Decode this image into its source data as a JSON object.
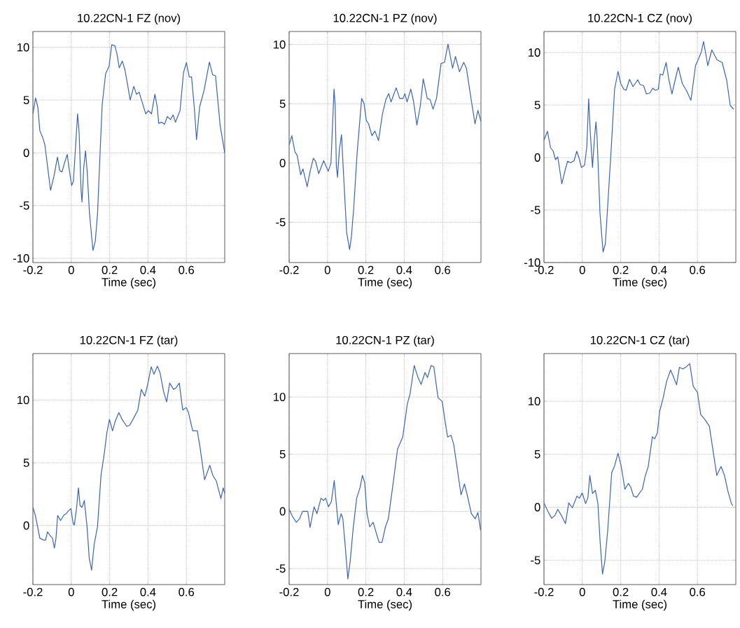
{
  "chart_data": [
    {
      "type": "line",
      "title": "10.22CN-1 FZ (nov)",
      "xlabel": "Time (sec)",
      "color": "#3c64b4",
      "grid": true,
      "xlim": [
        -0.2,
        0.8
      ],
      "ylim": [
        -10.4,
        11.5
      ],
      "xticks": [
        -0.2,
        0,
        0.2,
        0.4,
        0.6
      ],
      "yticks": [
        -10,
        -5,
        0,
        5,
        10
      ],
      "x": [
        -0.2,
        -0.186,
        -0.174,
        -0.164,
        -0.15,
        -0.138,
        -0.108,
        -0.09,
        -0.072,
        -0.06,
        -0.048,
        -0.036,
        -0.021,
        -0.012,
        0.002,
        0.011,
        0.023,
        0.033,
        0.041,
        0.051,
        0.056,
        0.065,
        0.074,
        0.083,
        0.095,
        0.113,
        0.125,
        0.137,
        0.149,
        0.161,
        0.179,
        0.197,
        0.211,
        0.227,
        0.238,
        0.25,
        0.266,
        0.28,
        0.295,
        0.307,
        0.326,
        0.34,
        0.354,
        0.366,
        0.388,
        0.402,
        0.418,
        0.436,
        0.448,
        0.456,
        0.471,
        0.486,
        0.501,
        0.517,
        0.531,
        0.543,
        0.567,
        0.585,
        0.6,
        0.615,
        0.627,
        0.641,
        0.653,
        0.669,
        0.692,
        0.72,
        0.737,
        0.752,
        0.776,
        0.8
      ],
      "values": [
        3.7,
        5.2,
        4.3,
        2.1,
        1.5,
        0.8,
        -3.55,
        -2.2,
        -0.4,
        -1.7,
        -1.8,
        -1.0,
        -0.15,
        -1.4,
        -3.1,
        -2.7,
        0.8,
        3.7,
        1.9,
        -3.55,
        -4.65,
        -1.4,
        0.2,
        -1.8,
        -5.75,
        -9.25,
        -8.4,
        -5.75,
        -0.5,
        4.55,
        7.5,
        8.2,
        10.25,
        10.15,
        9.4,
        8.05,
        8.7,
        7.85,
        6.3,
        5.0,
        6.3,
        5.55,
        5.75,
        5.0,
        3.7,
        4.0,
        3.7,
        5.55,
        4.35,
        2.8,
        2.9,
        2.7,
        3.45,
        3.15,
        3.6,
        2.9,
        4.0,
        7.6,
        8.55,
        7.2,
        7.2,
        4.35,
        1.25,
        4.35,
        5.9,
        8.6,
        7.4,
        7.3,
        2.6,
        0
      ]
    },
    {
      "type": "line",
      "title": "10.22CN-1 PZ (nov)",
      "xlabel": "Time (sec)",
      "color": "#3c64b4",
      "grid": true,
      "xlim": [
        -0.2,
        0.8
      ],
      "ylim": [
        -8.4,
        11.1
      ],
      "xticks": [
        -0.2,
        0,
        0.2,
        0.4,
        0.6
      ],
      "yticks": [
        -5,
        0,
        5,
        10
      ],
      "x": [
        -0.2,
        -0.186,
        -0.17,
        -0.158,
        -0.14,
        -0.128,
        -0.106,
        -0.092,
        -0.074,
        -0.062,
        -0.046,
        -0.02,
        -0.008,
        0.004,
        0.018,
        0.034,
        0.04,
        0.046,
        0.052,
        0.062,
        0.073,
        0.082,
        0.1,
        0.115,
        0.124,
        0.136,
        0.154,
        0.178,
        0.19,
        0.202,
        0.214,
        0.232,
        0.247,
        0.266,
        0.286,
        0.304,
        0.319,
        0.331,
        0.358,
        0.376,
        0.394,
        0.403,
        0.415,
        0.434,
        0.448,
        0.466,
        0.484,
        0.499,
        0.52,
        0.535,
        0.55,
        0.568,
        0.592,
        0.61,
        0.628,
        0.652,
        0.667,
        0.688,
        0.71,
        0.724,
        0.748,
        0.769,
        0.784,
        0.8
      ],
      "values": [
        1.5,
        2.3,
        0.95,
        0.65,
        -1.0,
        -0.5,
        -2.0,
        -0.8,
        0.4,
        0.15,
        -0.9,
        0.2,
        -0.25,
        -0.7,
        0,
        6.25,
        4.85,
        -0.25,
        -1.2,
        1.15,
        2.4,
        -0.45,
        -5.9,
        -7.3,
        -6.3,
        -3.95,
        0.75,
        5.45,
        5.05,
        3.6,
        3.3,
        2.3,
        2.7,
        1.9,
        4.1,
        5.35,
        5.85,
        5.15,
        6.35,
        5.45,
        5.45,
        5.85,
        5.15,
        6.25,
        5.25,
        3.2,
        4.85,
        7.1,
        5.45,
        5.35,
        4.55,
        5.45,
        8.4,
        8.5,
        10.05,
        8.0,
        9.0,
        7.7,
        8.5,
        8.0,
        5.45,
        3.3,
        4.45,
        3.5
      ]
    },
    {
      "type": "line",
      "title": "10.22CN-1 CZ (nov)",
      "xlabel": "Time (sec)",
      "color": "#3c64b4",
      "grid": true,
      "xlim": [
        -0.2,
        0.8
      ],
      "ylim": [
        -10,
        12
      ],
      "xticks": [
        -0.2,
        0,
        0.2,
        0.4,
        0.6
      ],
      "yticks": [
        -10,
        -5,
        0,
        5,
        10
      ],
      "x": [
        -0.2,
        -0.182,
        -0.166,
        -0.152,
        -0.14,
        -0.128,
        -0.107,
        -0.091,
        -0.077,
        -0.061,
        -0.043,
        -0.029,
        -0.017,
        -0.005,
        0.011,
        0.023,
        0.033,
        0.041,
        0.053,
        0.063,
        0.071,
        0.077,
        0.092,
        0.108,
        0.12,
        0.132,
        0.15,
        0.168,
        0.186,
        0.2,
        0.216,
        0.228,
        0.246,
        0.264,
        0.289,
        0.301,
        0.319,
        0.334,
        0.352,
        0.367,
        0.381,
        0.396,
        0.406,
        0.419,
        0.437,
        0.451,
        0.467,
        0.484,
        0.5,
        0.521,
        0.545,
        0.566,
        0.59,
        0.608,
        0.62,
        0.632,
        0.654,
        0.675,
        0.702,
        0.729,
        0.753,
        0.771,
        0.789
      ],
      "values": [
        1.65,
        2.5,
        0.95,
        0.6,
        -0.2,
        0.05,
        -2.5,
        -1.3,
        -0.35,
        -0.5,
        -0.3,
        0.6,
        -0.05,
        -0.95,
        -0.75,
        0.95,
        5.6,
        2.5,
        -0.95,
        1.85,
        3.4,
        1.85,
        -5.3,
        -9.0,
        -8.2,
        -4.65,
        0.7,
        6.5,
        8.2,
        7.05,
        6.5,
        6.4,
        7.45,
        6.75,
        7.4,
        6.95,
        6.85,
        6.05,
        6.15,
        6.6,
        6.4,
        6.5,
        7.95,
        7.85,
        9.05,
        7.4,
        6.05,
        7.4,
        8.6,
        7.05,
        6.3,
        5.45,
        8.75,
        9.5,
        10.05,
        11.05,
        8.75,
        10.25,
        9.3,
        9.05,
        7.3,
        4.95,
        4.6
      ]
    },
    {
      "type": "line",
      "title": "10.22CN-1 FZ (tar)",
      "xlabel": "Time (sec)",
      "color": "#3c64b4",
      "grid": true,
      "xlim": [
        -0.2,
        0.8
      ],
      "ylim": [
        -4.7,
        13.7
      ],
      "xticks": [
        -0.2,
        0,
        0.2,
        0.4,
        0.6
      ],
      "yticks": [
        0,
        5,
        10
      ],
      "x": [
        -0.2,
        -0.188,
        -0.176,
        -0.164,
        -0.146,
        -0.134,
        -0.124,
        -0.11,
        -0.098,
        -0.088,
        -0.08,
        -0.071,
        -0.056,
        -0.038,
        -0.026,
        -0.016,
        -0.002,
        0.01,
        0.016,
        0.028,
        0.037,
        0.046,
        0.056,
        0.068,
        0.082,
        0.094,
        0.106,
        0.119,
        0.137,
        0.155,
        0.173,
        0.185,
        0.199,
        0.215,
        0.229,
        0.248,
        0.265,
        0.289,
        0.305,
        0.325,
        0.347,
        0.365,
        0.383,
        0.397,
        0.417,
        0.431,
        0.449,
        0.463,
        0.481,
        0.497,
        0.513,
        0.533,
        0.545,
        0.563,
        0.581,
        0.599,
        0.611,
        0.633,
        0.657,
        0.671,
        0.695,
        0.722,
        0.738,
        0.756,
        0.78,
        0.792,
        0.8
      ],
      "values": [
        1.45,
        0.85,
        -0.05,
        -1.0,
        -1.15,
        -1.15,
        -0.5,
        -0.8,
        -1.0,
        -1.8,
        -1.05,
        0.8,
        0.4,
        0.85,
        0.95,
        1.15,
        1.35,
        0.15,
        0.05,
        1.45,
        3.0,
        1.6,
        1.45,
        2.0,
        -0.05,
        -2.65,
        -3.55,
        -1.55,
        -0.05,
        4.0,
        5.85,
        7.35,
        8.45,
        7.55,
        8.3,
        9.0,
        8.45,
        7.9,
        8.0,
        8.55,
        9.2,
        10.85,
        10.3,
        11.15,
        12.65,
        12.05,
        12.7,
        12.15,
        10.7,
        9.85,
        11.35,
        10.85,
        10.95,
        11.35,
        9.2,
        9.4,
        9.0,
        7.55,
        7.55,
        6.25,
        3.65,
        4.8,
        4.0,
        3.55,
        2.15,
        3.0,
        2.55
      ]
    },
    {
      "type": "line",
      "title": "10.22CN-1 PZ (tar)",
      "xlabel": "Time (sec)",
      "color": "#3c64b4",
      "grid": true,
      "xlim": [
        -0.2,
        0.8
      ],
      "ylim": [
        -6.4,
        13.8
      ],
      "xticks": [
        -0.2,
        0,
        0.2,
        0.4,
        0.6
      ],
      "yticks": [
        -5,
        0,
        5,
        10
      ],
      "x": [
        -0.2,
        -0.184,
        -0.163,
        -0.146,
        -0.13,
        -0.112,
        -0.103,
        -0.091,
        -0.07,
        -0.055,
        -0.034,
        -0.02,
        -0.01,
        0.005,
        0.02,
        0.035,
        0.046,
        0.056,
        0.071,
        0.08,
        0.092,
        0.106,
        0.118,
        0.134,
        0.152,
        0.17,
        0.182,
        0.194,
        0.206,
        0.22,
        0.238,
        0.25,
        0.269,
        0.284,
        0.302,
        0.317,
        0.344,
        0.365,
        0.392,
        0.416,
        0.43,
        0.452,
        0.472,
        0.488,
        0.508,
        0.521,
        0.54,
        0.554,
        0.576,
        0.598,
        0.614,
        0.626,
        0.644,
        0.658,
        0.678,
        0.696,
        0.714,
        0.728,
        0.75,
        0.77,
        0.784,
        0.798
      ],
      "values": [
        0.2,
        -0.4,
        -0.95,
        -0.65,
        0,
        0,
        0,
        -1.4,
        0.4,
        -0.2,
        1.15,
        0.95,
        1.15,
        0.4,
        0.85,
        2.7,
        0.65,
        -1.15,
        -0.2,
        -0.65,
        -2.95,
        -5.9,
        -4.4,
        -1.45,
        1.15,
        2.1,
        3.15,
        2.5,
        -0.2,
        -1.35,
        -0.95,
        -1.65,
        -2.7,
        -2.7,
        -1.35,
        -0.65,
        2.7,
        5.45,
        6.5,
        9.4,
        10.25,
        12.75,
        11.7,
        11.1,
        12.15,
        11.7,
        12.75,
        12.65,
        9.95,
        9.6,
        7.75,
        6.5,
        6.65,
        5.85,
        3.55,
        1.45,
        2.4,
        1.45,
        -0.2,
        -0.65,
        -0.1,
        -1.65
      ]
    },
    {
      "type": "line",
      "title": "10.22CN-1 CZ (tar)",
      "xlabel": "Time (sec)",
      "color": "#3c64b4",
      "grid": true,
      "xlim": [
        -0.2,
        0.8
      ],
      "ylim": [
        -7.3,
        14.5
      ],
      "xticks": [
        -0.2,
        0,
        0.2,
        0.4,
        0.6
      ],
      "yticks": [
        -5,
        0,
        5,
        10
      ],
      "x": [
        -0.2,
        -0.182,
        -0.16,
        -0.142,
        -0.128,
        -0.11,
        -0.088,
        -0.071,
        -0.052,
        -0.028,
        -0.015,
        -0.001,
        0.017,
        0.029,
        0.039,
        0.053,
        0.068,
        0.081,
        0.093,
        0.105,
        0.117,
        0.132,
        0.153,
        0.168,
        0.186,
        0.202,
        0.222,
        0.24,
        0.252,
        0.267,
        0.283,
        0.313,
        0.327,
        0.343,
        0.365,
        0.377,
        0.391,
        0.403,
        0.421,
        0.439,
        0.46,
        0.476,
        0.491,
        0.506,
        0.524,
        0.542,
        0.56,
        0.578,
        0.6,
        0.617,
        0.638,
        0.662,
        0.684,
        0.701,
        0.723,
        0.741,
        0.759,
        0.777,
        0.784
      ],
      "values": [
        0.4,
        -0.3,
        -1.05,
        -0.75,
        -0.2,
        -0.75,
        -1.55,
        0.4,
        -0.05,
        1.05,
        0.85,
        1.35,
        0.35,
        0.9,
        3.0,
        1.3,
        1.6,
        0.35,
        -3.35,
        -6.3,
        -5.15,
        -2.25,
        3.25,
        3.9,
        5.1,
        3.9,
        1.7,
        2.25,
        1.9,
        1.05,
        0.95,
        1.7,
        2.9,
        3.8,
        6.65,
        6.45,
        7.0,
        9.05,
        10.3,
        11.85,
        12.95,
        12.25,
        11.55,
        13.2,
        13.05,
        13.25,
        13.55,
        11.4,
        10.85,
        8.75,
        8.3,
        7.65,
        5.0,
        3.0,
        3.85,
        3.0,
        1.5,
        0.35,
        0.15
      ]
    }
  ]
}
